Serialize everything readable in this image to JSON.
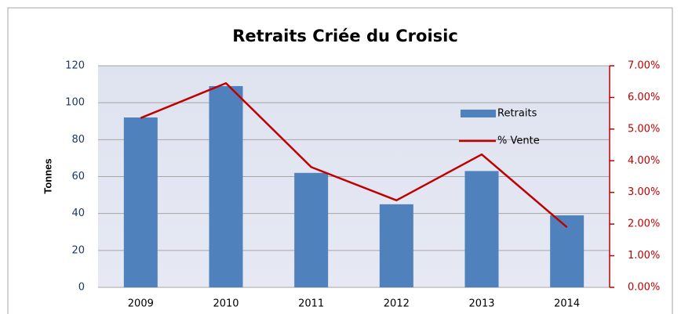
{
  "chart_data": {
    "type": "bar-line",
    "title": "Retraits  Criée du Croisic",
    "y_label": "Tonnes",
    "categories": [
      "2009",
      "2010",
      "2011",
      "2012",
      "2013",
      "2014"
    ],
    "series": [
      {
        "name": "Retraits",
        "type": "bar",
        "color": "#4f81bd",
        "values": [
          92,
          109,
          62,
          45,
          63,
          39
        ]
      },
      {
        "name": "% Vente",
        "type": "line",
        "color": "#c00000",
        "axis": "y2",
        "values": [
          5.35,
          6.45,
          3.8,
          2.75,
          4.2,
          1.9
        ]
      }
    ],
    "ylim": [
      0,
      120
    ],
    "yticks": [
      0,
      20,
      40,
      60,
      80,
      100,
      120
    ],
    "y2lim": [
      0,
      7
    ],
    "y2ticks": [
      {
        "value": 0,
        "label": "0.00%"
      },
      {
        "value": 1,
        "label": "1.00%"
      },
      {
        "value": 2,
        "label": "2.00%"
      },
      {
        "value": 3,
        "label": "3.00%"
      },
      {
        "value": 4,
        "label": "4.00%"
      },
      {
        "value": 5,
        "label": "5.00%"
      },
      {
        "value": 6,
        "label": "6.00%"
      },
      {
        "value": 7,
        "label": "7.00%"
      }
    ],
    "grid": true,
    "legend": "top-right"
  }
}
